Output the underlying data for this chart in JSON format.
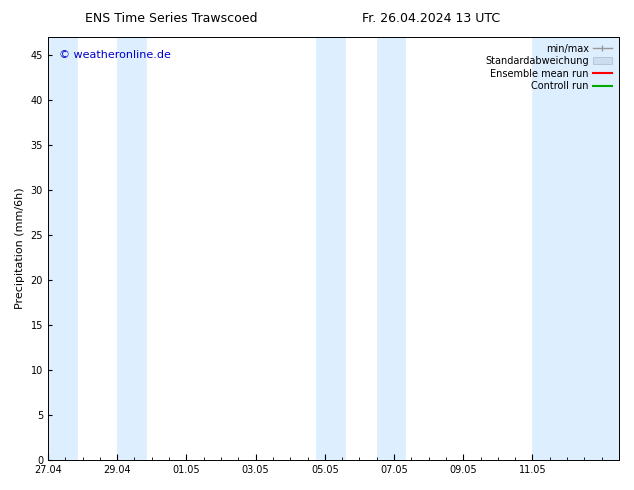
{
  "title_left": "ENS Time Series Trawscoed",
  "title_right": "Fr. 26.04.2024 13 UTC",
  "ylabel": "Precipitation (mm/6h)",
  "watermark": "© weatheronline.de",
  "watermark_color": "#0000cc",
  "bg_color": "#ffffff",
  "plot_bg_color": "#ffffff",
  "band_color": "#ddeeff",
  "band_edge_color": "#aaccdd",
  "ylim": [
    0,
    47
  ],
  "yticks": [
    0,
    5,
    10,
    15,
    20,
    25,
    30,
    35,
    40,
    45
  ],
  "shaded_bands": [
    {
      "x_start": 0.0,
      "x_end": 0.83
    },
    {
      "x_start": 2.0,
      "x_end": 2.83
    },
    {
      "x_start": 7.75,
      "x_end": 8.58
    },
    {
      "x_start": 9.5,
      "x_end": 10.33
    },
    {
      "x_start": 14.0,
      "x_end": 16.5
    }
  ],
  "x_tick_labels": [
    "27.04",
    "29.04",
    "01.05",
    "03.05",
    "05.05",
    "07.05",
    "09.05",
    "11.05"
  ],
  "x_tick_positions": [
    0,
    2,
    4,
    6,
    8,
    10,
    12,
    14
  ],
  "xlim": [
    0,
    16.5
  ],
  "legend_labels": [
    "min/max",
    "Standardabweichung",
    "Ensemble mean run",
    "Controll run"
  ],
  "legend_colors": [
    "#aaaaaa",
    "#ccddf0",
    "#ff0000",
    "#00aa00"
  ],
  "fontsize_title": 9,
  "fontsize_labels": 8,
  "fontsize_ticks": 7,
  "fontsize_watermark": 8,
  "fontsize_legend": 7
}
